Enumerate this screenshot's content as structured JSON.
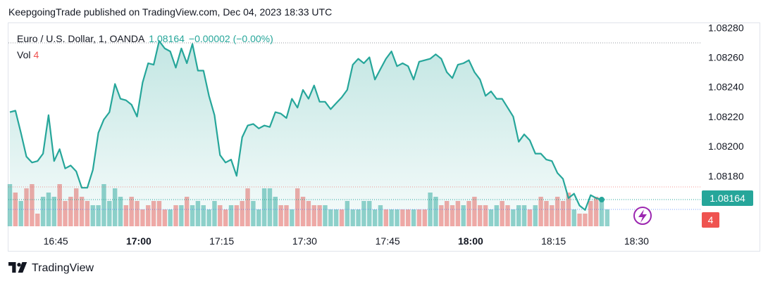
{
  "header": {
    "published": "KeepgoingTrade published on TradingView.com, Dec 04, 2023 18:33 UTC"
  },
  "legend": {
    "symbol": "Euro / U.S. Dollar, 1, OANDA",
    "last": "1.08164",
    "change": "−0.00002 (−0.00%)",
    "vol_label": "Vol",
    "vol_value": "4"
  },
  "price_tag": "1.08164",
  "volume_tag": "4",
  "brand": {
    "name": "TradingView"
  },
  "colors": {
    "line": "#26a69a",
    "up_volume": "#26a69a",
    "down_volume": "#ef5350",
    "price_tag": "#26a69a",
    "volume_tag": "#ef5350"
  },
  "chart_data": {
    "type": "area",
    "y_ticks": [
      "1.08280",
      "1.08260",
      "1.08240",
      "1.08220",
      "1.08200",
      "1.08180"
    ],
    "ylim": [
      1.08146,
      1.08283
    ],
    "x_ticks": [
      {
        "label": "16:45",
        "t": 8.3,
        "bold": false
      },
      {
        "label": "17:00",
        "t": 23.3,
        "bold": true
      },
      {
        "label": "17:15",
        "t": 38.3,
        "bold": false
      },
      {
        "label": "17:30",
        "t": 53.3,
        "bold": false
      },
      {
        "label": "17:45",
        "t": 68.3,
        "bold": false
      },
      {
        "label": "18:00",
        "t": 83.3,
        "bold": true
      },
      {
        "label": "18:15",
        "t": 98.3,
        "bold": false
      },
      {
        "label": "18:30",
        "t": 113.3,
        "bold": false
      }
    ],
    "last_price": 1.08164,
    "series": [
      {
        "values": [
          1.08223,
          1.08224,
          1.08209,
          1.08193,
          1.08189,
          1.0819,
          1.08195,
          1.08221,
          1.0819,
          1.08198,
          1.08185,
          1.08187,
          1.08183,
          1.08172,
          1.08172,
          1.08184,
          1.08209,
          1.08218,
          1.08223,
          1.08242,
          1.08232,
          1.08231,
          1.08228,
          1.0822,
          1.08243,
          1.08256,
          1.08255,
          1.08271,
          1.08266,
          1.08264,
          1.08253,
          1.08266,
          1.08256,
          1.08269,
          1.08251,
          1.08251,
          1.08234,
          1.08221,
          1.08194,
          1.08189,
          1.08191,
          1.0818,
          1.08206,
          1.08214,
          1.08215,
          1.08212,
          1.08214,
          1.08213,
          1.08223,
          1.08222,
          1.08219,
          1.08232,
          1.08226,
          1.08238,
          1.08232,
          1.08241,
          1.0823,
          1.0823,
          1.08225,
          1.08229,
          1.08233,
          1.08238,
          1.08255,
          1.08259,
          1.08256,
          1.0826,
          1.08245,
          1.08252,
          1.08259,
          1.08264,
          1.08254,
          1.08256,
          1.08254,
          1.08245,
          1.08257,
          1.08258,
          1.08259,
          1.08262,
          1.08259,
          1.0825,
          1.08246,
          1.08255,
          1.08256,
          1.08258,
          1.0825,
          1.08245,
          1.08234,
          1.08237,
          1.08232,
          1.08232,
          1.08226,
          1.0822,
          1.08203,
          1.08208,
          1.08204,
          1.08195,
          1.08195,
          1.08191,
          1.0819,
          1.08182,
          1.08178,
          1.08165,
          1.08168,
          1.0816,
          1.08157,
          1.08167,
          1.08165,
          1.08164
        ]
      },
      {
        "name": "Vol",
        "volume": [
          {
            "v": 10,
            "up": true
          },
          {
            "v": 8,
            "up": false
          },
          {
            "v": 6,
            "up": true
          },
          {
            "v": 9,
            "up": false
          },
          {
            "v": 10,
            "up": false
          },
          {
            "v": 3,
            "up": false
          },
          {
            "v": 7,
            "up": true
          },
          {
            "v": 8,
            "up": true
          },
          {
            "v": 7,
            "up": true
          },
          {
            "v": 10,
            "up": false
          },
          {
            "v": 6,
            "up": false
          },
          {
            "v": 7,
            "up": false
          },
          {
            "v": 9,
            "up": false
          },
          {
            "v": 7,
            "up": false
          },
          {
            "v": 6,
            "up": false
          },
          {
            "v": 5,
            "up": true
          },
          {
            "v": 5,
            "up": true
          },
          {
            "v": 10,
            "up": true
          },
          {
            "v": 6,
            "up": true
          },
          {
            "v": 9,
            "up": true
          },
          {
            "v": 7,
            "up": true
          },
          {
            "v": 5,
            "up": false
          },
          {
            "v": 7,
            "up": false
          },
          {
            "v": 6,
            "up": false
          },
          {
            "v": 4,
            "up": false
          },
          {
            "v": 5,
            "up": false
          },
          {
            "v": 6,
            "up": false
          },
          {
            "v": 6,
            "up": false
          },
          {
            "v": 4,
            "up": false
          },
          {
            "v": 4,
            "up": true
          },
          {
            "v": 5,
            "up": false
          },
          {
            "v": 5,
            "up": true
          },
          {
            "v": 7,
            "up": false
          },
          {
            "v": 5,
            "up": true
          },
          {
            "v": 6,
            "up": true
          },
          {
            "v": 5,
            "up": true
          },
          {
            "v": 4,
            "up": true
          },
          {
            "v": 6,
            "up": true
          },
          {
            "v": 5,
            "up": false
          },
          {
            "v": 4,
            "up": false
          },
          {
            "v": 5,
            "up": true
          },
          {
            "v": 5,
            "up": false
          },
          {
            "v": 6,
            "up": false
          },
          {
            "v": 9,
            "up": false
          },
          {
            "v": 6,
            "up": true
          },
          {
            "v": 4,
            "up": true
          },
          {
            "v": 9,
            "up": true
          },
          {
            "v": 9,
            "up": true
          },
          {
            "v": 7,
            "up": true
          },
          {
            "v": 5,
            "up": false
          },
          {
            "v": 5,
            "up": false
          },
          {
            "v": 4,
            "up": true
          },
          {
            "v": 9,
            "up": false
          },
          {
            "v": 7,
            "up": false
          },
          {
            "v": 6,
            "up": false
          },
          {
            "v": 5,
            "up": false
          },
          {
            "v": 5,
            "up": false
          },
          {
            "v": 5,
            "up": true
          },
          {
            "v": 4,
            "up": true
          },
          {
            "v": 4,
            "up": true
          },
          {
            "v": 4,
            "up": false
          },
          {
            "v": 6,
            "up": true
          },
          {
            "v": 4,
            "up": true
          },
          {
            "v": 4,
            "up": true
          },
          {
            "v": 6,
            "up": true
          },
          {
            "v": 6,
            "up": true
          },
          {
            "v": 4,
            "up": true
          },
          {
            "v": 5,
            "up": true
          },
          {
            "v": 4,
            "up": false
          },
          {
            "v": 4,
            "up": true
          },
          {
            "v": 4,
            "up": true
          },
          {
            "v": 4,
            "up": false
          },
          {
            "v": 4,
            "up": false
          },
          {
            "v": 4,
            "up": true
          },
          {
            "v": 4,
            "up": false
          },
          {
            "v": 4,
            "up": false
          },
          {
            "v": 8,
            "up": true
          },
          {
            "v": 7,
            "up": true
          },
          {
            "v": 5,
            "up": false
          },
          {
            "v": 6,
            "up": false
          },
          {
            "v": 5,
            "up": false
          },
          {
            "v": 6,
            "up": false
          },
          {
            "v": 5,
            "up": true
          },
          {
            "v": 6,
            "up": false
          },
          {
            "v": 7,
            "up": false
          },
          {
            "v": 5,
            "up": false
          },
          {
            "v": 5,
            "up": false
          },
          {
            "v": 4,
            "up": true
          },
          {
            "v": 5,
            "up": true
          },
          {
            "v": 6,
            "up": false
          },
          {
            "v": 5,
            "up": false
          },
          {
            "v": 4,
            "up": true
          },
          {
            "v": 5,
            "up": true
          },
          {
            "v": 5,
            "up": true
          },
          {
            "v": 4,
            "up": false
          },
          {
            "v": 5,
            "up": true
          },
          {
            "v": 7,
            "up": false
          },
          {
            "v": 6,
            "up": false
          },
          {
            "v": 5,
            "up": false
          },
          {
            "v": 7,
            "up": false
          },
          {
            "v": 6,
            "up": false
          },
          {
            "v": 8,
            "up": false
          },
          {
            "v": 4,
            "up": true
          },
          {
            "v": 3,
            "up": false
          },
          {
            "v": 3,
            "up": false
          },
          {
            "v": 6,
            "up": false
          },
          {
            "v": 7,
            "up": false
          },
          {
            "v": 6,
            "up": true
          },
          {
            "v": 4,
            "up": true
          }
        ]
      }
    ],
    "grid": false,
    "legend_position": "top-left"
  }
}
